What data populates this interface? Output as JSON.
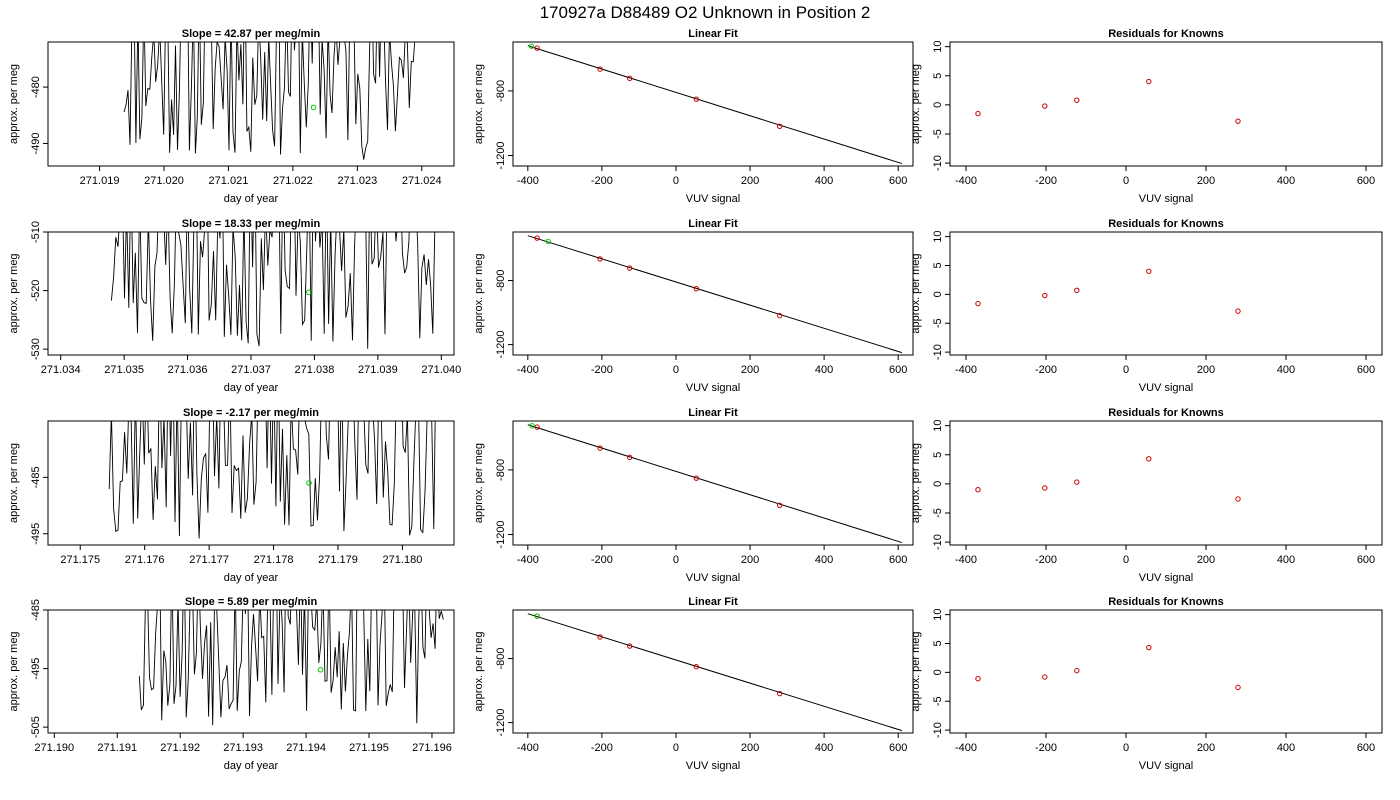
{
  "page_title": "170927a     D88489   O2 Unknown in Position  2",
  "chart_data": [
    {
      "type": "line",
      "title": "Slope =  42.87  per meg/min",
      "xlabel": "day of year",
      "ylabel": "approx. per meg",
      "xlim": [
        271.0182,
        271.0245
      ],
      "ylim": [
        -494,
        -472
      ],
      "xticks": [
        "271.019",
        "271.020",
        "271.021",
        "271.022",
        "271.023",
        "271.024"
      ],
      "yticks": [
        "-480",
        "-490"
      ],
      "marker": {
        "x": 271.02232,
        "y": -483.6
      },
      "trace_x_range": [
        271.01938,
        271.02396
      ],
      "seed": 11
    },
    {
      "type": "scatter_with_fit",
      "title": "Linear Fit",
      "xlabel": "VUV signal",
      "ylabel": "approx. per meg",
      "xlim": [
        -440,
        640
      ],
      "ylim": [
        -1265,
        -497
      ],
      "xticks": [
        "-400",
        "-200",
        "0",
        "200",
        "400",
        "600"
      ],
      "yticks": [
        "-800",
        "-1200"
      ],
      "fit_line": {
        "x": [
          -400,
          610
        ],
        "y": [
          -520,
          -1250
        ]
      },
      "knowns": {
        "x": [
          -375,
          -205,
          -125,
          55,
          280
        ],
        "y": [
          -535,
          -665,
          -722,
          -851,
          -1019
        ]
      },
      "unknown": {
        "x": [
          -390
        ],
        "y": [
          -523
        ]
      }
    },
    {
      "type": "scatter",
      "title": "Residuals for Knowns",
      "xlabel": "VUV signal",
      "ylabel": "approx. per meg",
      "xlim": [
        -440,
        640
      ],
      "ylim": [
        -10.5,
        10.8
      ],
      "xticks": [
        "-400",
        "-200",
        "0",
        "200",
        "400",
        "600"
      ],
      "yticks": [
        "10",
        "5",
        "0",
        "-5",
        "-10"
      ],
      "points": {
        "x": [
          -370,
          -203,
          -123,
          57,
          280
        ],
        "y": [
          -1.5,
          -0.2,
          0.8,
          4.0,
          -2.8
        ]
      }
    },
    {
      "type": "line",
      "title": "Slope =  18.33  per meg/min",
      "xlabel": "day of year",
      "ylabel": "approx. per meg",
      "xlim": [
        271.0338,
        271.0402
      ],
      "ylim": [
        -531,
        -510
      ],
      "xticks": [
        "271.034",
        "271.035",
        "271.036",
        "271.037",
        "271.038",
        "271.039",
        "271.040"
      ],
      "yticks": [
        "-510",
        "-520",
        "-530"
      ],
      "marker": {
        "x": 271.03791,
        "y": -520.3
      },
      "trace_x_range": [
        271.0348,
        271.0399
      ],
      "seed": 23
    },
    {
      "type": "scatter_with_fit",
      "title": "Linear Fit",
      "xlabel": "VUV signal",
      "ylabel": "approx. per meg",
      "xlim": [
        -440,
        640
      ],
      "ylim": [
        -1265,
        -497
      ],
      "xticks": [
        "-400",
        "-200",
        "0",
        "200",
        "400",
        "600"
      ],
      "yticks": [
        "-800",
        "-1200"
      ],
      "fit_line": {
        "x": [
          -400,
          610
        ],
        "y": [
          -520,
          -1250
        ]
      },
      "knowns": {
        "x": [
          -375,
          -205,
          -125,
          55,
          280
        ],
        "y": [
          -535,
          -665,
          -722,
          -851,
          -1019
        ]
      },
      "unknown": {
        "x": [
          -345
        ],
        "y": [
          -556
        ]
      }
    },
    {
      "type": "scatter",
      "title": "Residuals for Knowns",
      "xlabel": "VUV signal",
      "ylabel": "approx. per meg",
      "xlim": [
        -440,
        640
      ],
      "ylim": [
        -10.5,
        10.8
      ],
      "xticks": [
        "-400",
        "-200",
        "0",
        "200",
        "400",
        "600"
      ],
      "yticks": [
        "10",
        "5",
        "0",
        "-5",
        "-10"
      ],
      "points": {
        "x": [
          -370,
          -203,
          -123,
          57,
          280
        ],
        "y": [
          -1.6,
          -0.2,
          0.7,
          4.0,
          -2.9
        ]
      }
    },
    {
      "type": "line",
      "title": "Slope =  -2.17  per meg/min",
      "xlabel": "day of year",
      "ylabel": "approx. per meg",
      "xlim": [
        271.1745,
        271.1808
      ],
      "ylim": [
        -497,
        -475
      ],
      "xticks": [
        "271.175",
        "271.176",
        "271.177",
        "271.178",
        "271.179",
        "271.180"
      ],
      "yticks": [
        "-485",
        "-495"
      ],
      "marker": {
        "x": 271.17855,
        "y": -486.0
      },
      "trace_x_range": [
        271.17545,
        271.18052
      ],
      "seed": 37
    },
    {
      "type": "scatter_with_fit",
      "title": "Linear Fit",
      "xlabel": "VUV signal",
      "ylabel": "approx. per meg",
      "xlim": [
        -440,
        640
      ],
      "ylim": [
        -1265,
        -497
      ],
      "xticks": [
        "-400",
        "-200",
        "0",
        "200",
        "400",
        "600"
      ],
      "yticks": [
        "-800",
        "-1200"
      ],
      "fit_line": {
        "x": [
          -400,
          610
        ],
        "y": [
          -520,
          -1250
        ]
      },
      "knowns": {
        "x": [
          -375,
          -205,
          -125,
          55,
          280
        ],
        "y": [
          -535,
          -665,
          -722,
          -851,
          -1019
        ]
      },
      "unknown": {
        "x": [
          -388
        ],
        "y": [
          -527
        ]
      }
    },
    {
      "type": "scatter",
      "title": "Residuals for Knowns",
      "xlabel": "VUV signal",
      "ylabel": "approx. per meg",
      "xlim": [
        -440,
        640
      ],
      "ylim": [
        -10.5,
        10.8
      ],
      "xticks": [
        "-400",
        "-200",
        "0",
        "200",
        "400",
        "600"
      ],
      "yticks": [
        "10",
        "5",
        "0",
        "-5",
        "-10"
      ],
      "points": {
        "x": [
          -370,
          -203,
          -123,
          57,
          280
        ],
        "y": [
          -1.0,
          -0.7,
          0.3,
          4.3,
          -2.6
        ]
      }
    },
    {
      "type": "line",
      "title": "Slope =  5.89  per meg/min",
      "xlabel": "day of year",
      "ylabel": "approx. per meg",
      "xlim": [
        271.1899,
        271.19635
      ],
      "ylim": [
        -506,
        -485
      ],
      "xticks": [
        "271.190",
        "271.191",
        "271.192",
        "271.193",
        "271.194",
        "271.195",
        "271.196"
      ],
      "yticks": [
        "-485",
        "-495",
        "-505"
      ],
      "marker": {
        "x": 271.19423,
        "y": -495.2
      },
      "trace_x_range": [
        271.19135,
        271.19618
      ],
      "seed": 53
    },
    {
      "type": "scatter_with_fit",
      "title": "Linear Fit",
      "xlabel": "VUV signal",
      "ylabel": "approx. per meg",
      "xlim": [
        -440,
        640
      ],
      "ylim": [
        -1265,
        -497
      ],
      "xticks": [
        "-400",
        "-200",
        "0",
        "200",
        "400",
        "600"
      ],
      "yticks": [
        "-800",
        "-1200"
      ],
      "fit_line": {
        "x": [
          -400,
          610
        ],
        "y": [
          -520,
          -1250
        ]
      },
      "knowns": {
        "x": [
          -375,
          -205,
          -125,
          55,
          280
        ],
        "y": [
          -535,
          -665,
          -722,
          -851,
          -1019
        ]
      },
      "unknown": {
        "x": [
          -375
        ],
        "y": [
          -535
        ]
      }
    },
    {
      "type": "scatter",
      "title": "Residuals for Knowns",
      "xlabel": "VUV signal",
      "ylabel": "approx. per meg",
      "xlim": [
        -440,
        640
      ],
      "ylim": [
        -10.5,
        10.8
      ],
      "xticks": [
        "-400",
        "-200",
        "0",
        "200",
        "400",
        "600"
      ],
      "yticks": [
        "10",
        "5",
        "0",
        "-5",
        "-10"
      ],
      "points": {
        "x": [
          -370,
          -203,
          -123,
          57,
          280
        ],
        "y": [
          -1.1,
          -0.8,
          0.3,
          4.3,
          -2.6
        ]
      }
    }
  ]
}
